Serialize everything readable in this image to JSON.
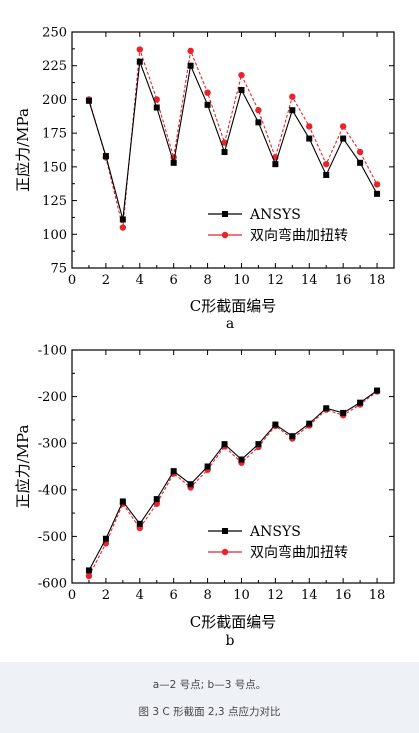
{
  "colors": {
    "ansys": "#000000",
    "twist": "#e8232a"
  },
  "chart_data": [
    {
      "type": "line",
      "panel_label": "a",
      "xlabel": "C形截面编号",
      "ylabel": "正应力/MPa",
      "xlim": [
        0,
        19
      ],
      "ylim": [
        75,
        250
      ],
      "xticks": [
        0,
        2,
        4,
        6,
        8,
        10,
        12,
        14,
        16,
        18
      ],
      "yticks": [
        75,
        100,
        125,
        150,
        175,
        200,
        225,
        250
      ],
      "legend_position": "lower-right",
      "x": [
        1,
        2,
        3,
        4,
        5,
        6,
        7,
        8,
        9,
        10,
        11,
        12,
        13,
        14,
        15,
        16,
        17,
        18
      ],
      "series": [
        {
          "name": "ANSYS",
          "marker": "square",
          "values": [
            199,
            158,
            111,
            228,
            194,
            153,
            225,
            196,
            161,
            207,
            183,
            152,
            192,
            171,
            144,
            171,
            153,
            130
          ]
        },
        {
          "name": "双向弯曲加扭转",
          "marker": "circle",
          "values": [
            200,
            157,
            105,
            237,
            200,
            157,
            236,
            205,
            168,
            218,
            192,
            157,
            202,
            180,
            152,
            180,
            161,
            137
          ]
        }
      ]
    },
    {
      "type": "line",
      "panel_label": "b",
      "xlabel": "C形截面编号",
      "ylabel": "正应力/MPa",
      "xlim": [
        0,
        19
      ],
      "ylim": [
        -600,
        -100
      ],
      "xticks": [
        0,
        2,
        4,
        6,
        8,
        10,
        12,
        14,
        16,
        18
      ],
      "yticks": [
        -600,
        -500,
        -400,
        -300,
        -200,
        -100
      ],
      "legend_position": "lower-right",
      "x": [
        1,
        2,
        3,
        4,
        5,
        6,
        7,
        8,
        9,
        10,
        11,
        12,
        13,
        14,
        15,
        16,
        17,
        18
      ],
      "series": [
        {
          "name": "ANSYS",
          "marker": "square",
          "values": [
            -573,
            -505,
            -425,
            -473,
            -420,
            -360,
            -388,
            -350,
            -302,
            -335,
            -302,
            -260,
            -285,
            -258,
            -225,
            -235,
            -213,
            -187
          ]
        },
        {
          "name": "双向弯曲加扭转",
          "marker": "circle",
          "values": [
            -585,
            -515,
            -430,
            -482,
            -430,
            -365,
            -395,
            -357,
            -307,
            -342,
            -308,
            -263,
            -290,
            -262,
            -228,
            -240,
            -217,
            -189
          ]
        }
      ]
    }
  ],
  "captions": {
    "sub": "a—2 号点; b—3 号点。",
    "main": "图 3 C 形截面 2,3 点应力对比"
  }
}
